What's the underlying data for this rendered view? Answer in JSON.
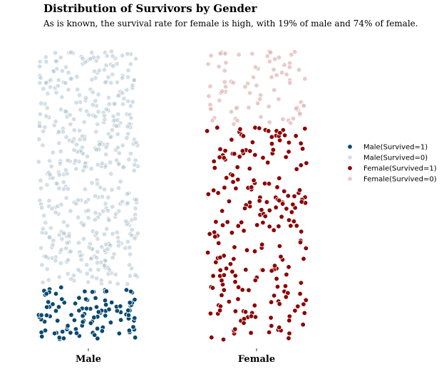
{
  "title": "Distribution of Survivors by Gender",
  "subtitle": "As is known, the survival rate for female is high, with 19% of male and 74% of female.",
  "chart_data": {
    "type": "scatter",
    "subtype": "jittered-strip (swarm) plot",
    "categories": [
      "Male",
      "Female"
    ],
    "xlabel": "",
    "ylabel": "",
    "grid": false,
    "legend_position": "right",
    "series": [
      {
        "name": "Male(Survived=1)",
        "category": "Male",
        "count": 109,
        "fill_fraction": 0.19,
        "color": "#0b4a6f",
        "alpha": 1.0
      },
      {
        "name": "Male(Survived=0)",
        "category": "Male",
        "count": 468,
        "fill_fraction": 0.81,
        "color": "#a9c0cc",
        "alpha": 0.5
      },
      {
        "name": "Female(Survived=1)",
        "category": "Female",
        "count": 233,
        "fill_fraction": 0.74,
        "color": "#8b0000",
        "alpha": 1.0
      },
      {
        "name": "Female(Survived=0)",
        "category": "Female",
        "count": 81,
        "fill_fraction": 0.26,
        "color": "#e0b5b5",
        "alpha": 0.7
      }
    ]
  }
}
